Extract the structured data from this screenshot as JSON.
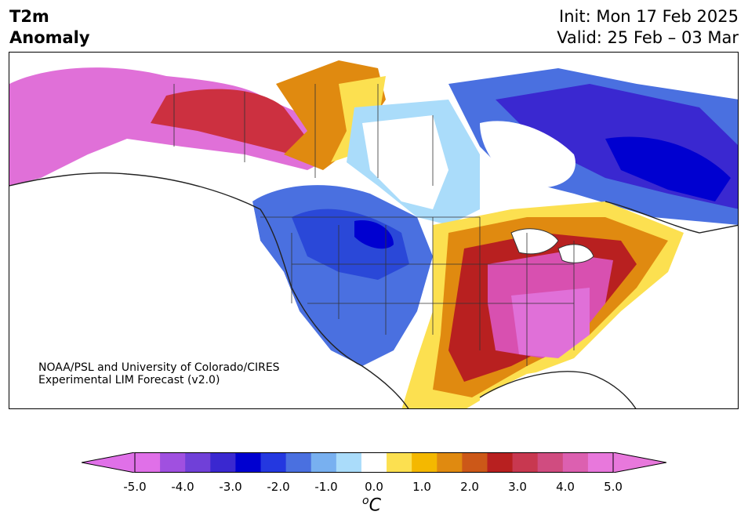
{
  "header": {
    "title_line1": "T2m",
    "title_line2": "Anomaly",
    "init": "Init: Mon 17 Feb 2025",
    "valid": "Valid: 25 Feb – 03 Mar"
  },
  "credit": {
    "line1": "NOAA/PSL and University of Colorado/CIRES",
    "line2": "Experimental LIM Forecast (v2.0)"
  },
  "colorbar": {
    "unit_sup": "o",
    "unit": "C",
    "ticks": [
      "-5.0",
      "-4.0",
      "-3.0",
      "-2.0",
      "-1.0",
      "0.0",
      "1.0",
      "2.0",
      "3.0",
      "4.0",
      "5.0"
    ],
    "levels": [
      -5.0,
      -4.5,
      -4.0,
      -3.5,
      -3.0,
      -2.5,
      -2.0,
      -1.5,
      -1.0,
      -0.5,
      0.5,
      1.0,
      1.5,
      2.0,
      2.5,
      3.0,
      3.5,
      4.0,
      4.5,
      5.0
    ],
    "colors": [
      "#e070e8",
      "#a050e0",
      "#7040d8",
      "#3a28d0",
      "#0000d0",
      "#2438e0",
      "#4a70e0",
      "#78b0f0",
      "#aadcfa",
      "#ffffff",
      "#fce050",
      "#f4b800",
      "#e08a10",
      "#cc5818",
      "#b82020",
      "#c83850",
      "#d04c80",
      "#dc60b0",
      "#e878dc"
    ],
    "over_color": "#e878dc",
    "under_color": "#e070e8"
  },
  "map_regions": {
    "alaska": "#e070d8",
    "yukon": "#cc3040",
    "west_us": "#2a48d8",
    "canada_prairie": "#aadcfa",
    "east_us": "#d850b0",
    "texas": "#b82020",
    "labrador": "#3a28d0",
    "hudson": "#ffffff"
  }
}
